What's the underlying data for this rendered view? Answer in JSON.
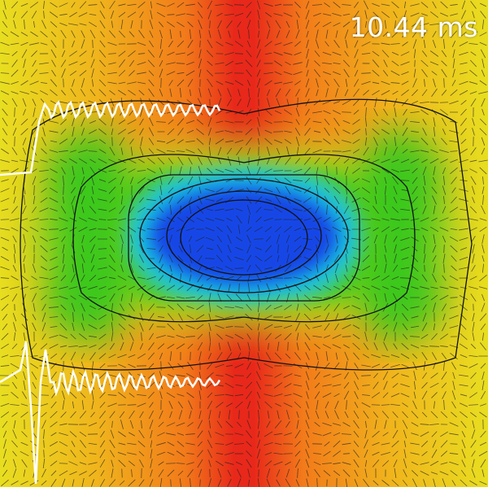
{
  "overlay": {
    "time_label": "10.44 ms"
  },
  "colors": {
    "high": "#e8281a",
    "mid_high": "#f07a1a",
    "mid": "#ecd21e",
    "mid_low": "#3ec81e",
    "low_cyan": "#18c8e0",
    "low": "#1446e6",
    "contour": "#111111",
    "waveform": "#ffffff"
  },
  "icons": {
    "vector_field": "arrow-glyphs"
  }
}
